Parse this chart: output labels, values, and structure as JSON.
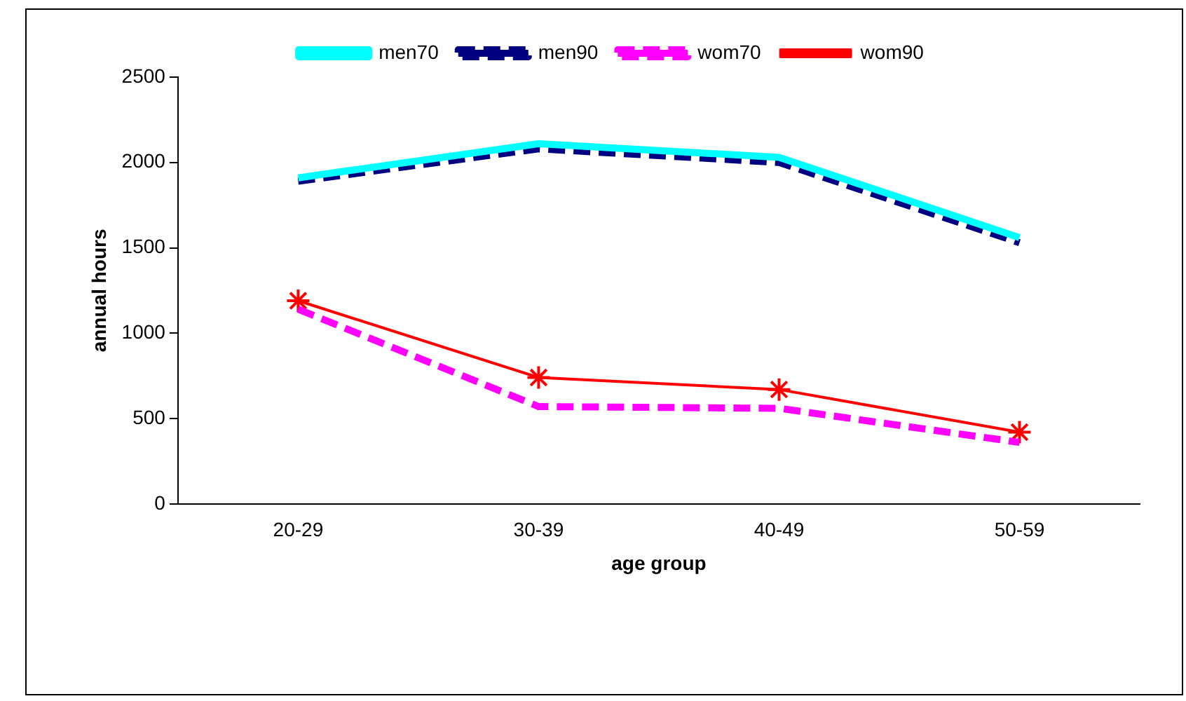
{
  "chart_data": {
    "type": "line",
    "xlabel": "age group",
    "ylabel": "annual hours",
    "categories": [
      "20-29",
      "30-39",
      "40-49",
      "50-59"
    ],
    "series": [
      {
        "name": "men70",
        "color": "#00ffff",
        "values": [
          1910,
          2110,
          2030,
          1560
        ],
        "line_style": "solid",
        "marker": "none"
      },
      {
        "name": "men90",
        "color": "#000080",
        "values": [
          1890,
          2080,
          2000,
          1530
        ],
        "line_style": "dashed",
        "marker": "none"
      },
      {
        "name": "wom70",
        "color": "#ff00ff",
        "values": [
          1140,
          570,
          560,
          360
        ],
        "line_style": "dashed",
        "marker": "none"
      },
      {
        "name": "wom90",
        "color": "#ff0000",
        "values": [
          1190,
          740,
          670,
          420
        ],
        "line_style": "solid",
        "marker": "cross"
      }
    ],
    "ylim": [
      0,
      2500
    ],
    "yticks": [
      0,
      500,
      1000,
      1500,
      2000,
      2500
    ],
    "grid": false,
    "legend": "top"
  }
}
